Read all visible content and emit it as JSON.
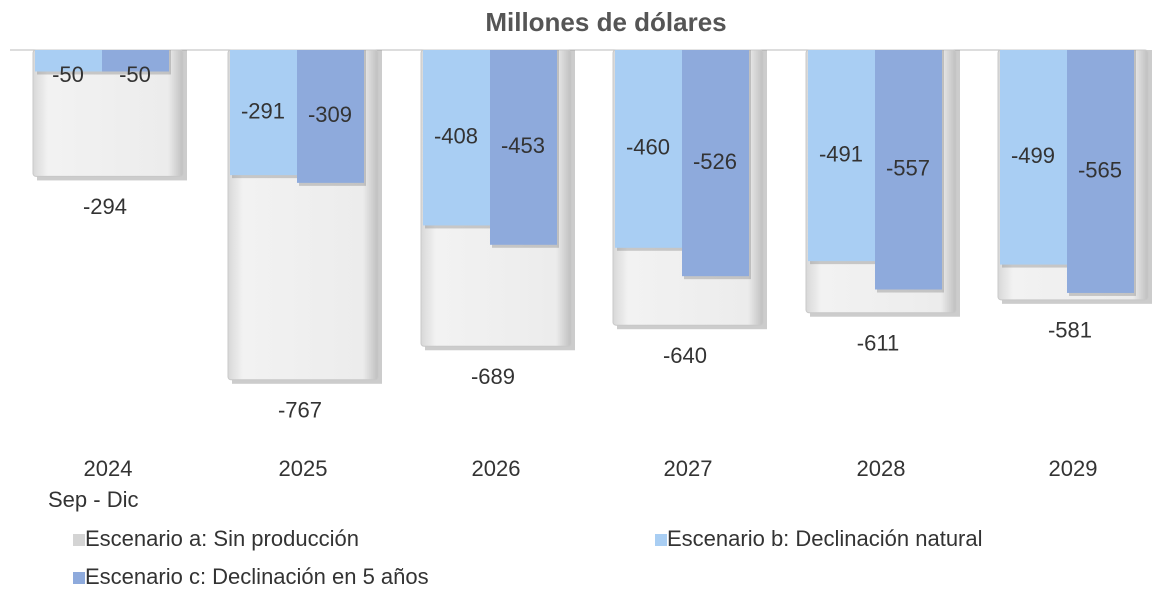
{
  "chart_data": {
    "type": "bar",
    "title": "Millones de dólares",
    "categories": [
      "2024",
      "2025",
      "2026",
      "2027",
      "2028",
      "2029"
    ],
    "category_note": "Sep - Dic",
    "ylim": [
      -900,
      0
    ],
    "series": [
      {
        "name": "Escenario a: Sin producción",
        "color": "#e4e4e4",
        "values": [
          -294,
          -767,
          -689,
          -640,
          -611,
          -581
        ]
      },
      {
        "name": "Escenario b: Declinación natural",
        "color": "#a9cef3",
        "values": [
          -50,
          -291,
          -408,
          -460,
          -491,
          -499
        ]
      },
      {
        "name": "Escenario c: Declinación en 5 años",
        "color": "#8eaadc",
        "values": [
          -50,
          -309,
          -453,
          -526,
          -557,
          -565
        ]
      }
    ]
  }
}
